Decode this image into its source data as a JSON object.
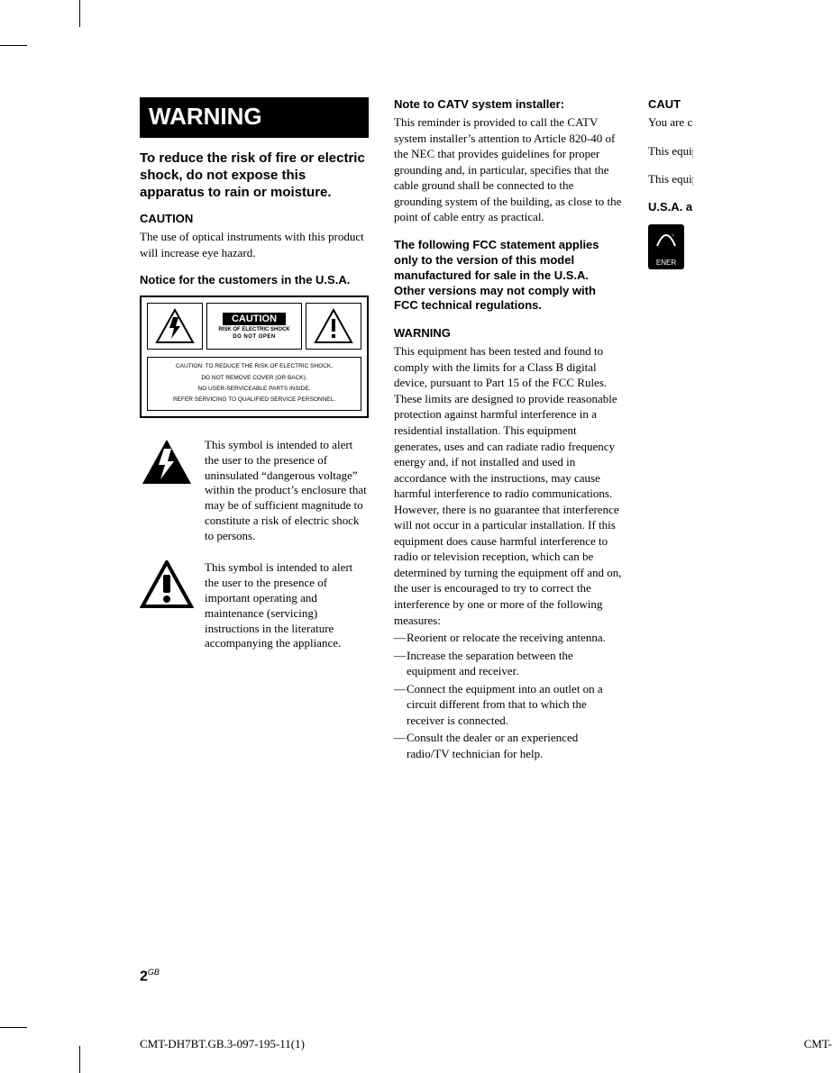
{
  "crop_marks": true,
  "col1": {
    "warning_title": "WARNING",
    "intro_bold": "To reduce the risk of fire or electric shock, do not expose this apparatus to rain or moisture.",
    "caution_head": "CAUTION",
    "caution_body": "The use of optical instruments with this product will increase eye hazard.",
    "notice_head": "Notice for the customers in the U.S.A.",
    "label": {
      "word": "CAUTION",
      "sub1": "RISK OF ELECTRIC SHOCK",
      "sub2": "DO NOT OPEN",
      "lines": "CAUTION: TO REDUCE THE RISK OF ELECTRIC SHOCK,<br>DO NOT REMOVE COVER (OR BACK).<br>NO USER-SERVICEABLE PARTS INSIDE.<br>REFER SERVICING TO QUALIFIED SERVICE PERSONNEL."
    },
    "symbol1": "This symbol is intended to alert the user to the presence of uninsulated “dangerous voltage” within the product’s enclosure that may be of sufficient magnitude to constitute a risk of electric shock to persons.",
    "symbol2": "This symbol is intended to alert the user to the presence of important operating and maintenance (servicing) instructions in the literature accompanying the appliance."
  },
  "col2": {
    "catv_head": "Note to CATV system installer:",
    "catv_body": "This reminder is provided to call the CATV system installer’s attention to Article 820-40 of the NEC that provides guidelines for proper grounding and, in particular, specifies that the cable ground shall be connected to the grounding system of the building, as close to the point of cable entry as practical.",
    "fcc_head": "The following FCC statement applies only to the version of this model manufactured for sale in the U.S.A. Other versions may not comply with FCC technical regulations.",
    "warn_head": "WARNING",
    "warn_body": "This equipment has been tested and found to comply with the limits for a Class B digital device, pursuant to Part 15 of the FCC Rules. These limits are designed to provide reasonable protection against harmful interference in a residential installation. This equipment generates, uses and can radiate radio frequency energy and, if not installed and used in accordance with the instructions, may cause harmful interference to radio communications. However, there is no guarantee that interference will not occur in a particular installation. If this equipment does cause harmful interference to radio or television reception, which can be determined by turning the equipment off and on, the user is encouraged to try to correct the interference by one or more of the following measures:",
    "dashes": [
      "Reorient or relocate the receiving antenna.",
      "Increase the separation between the equipment and receiver.",
      "Connect the equipment into an outlet on a circuit different from that to which the receiver is connected.",
      "Consult the dealer or an experienced radio/TV technician for help."
    ]
  },
  "col3": {
    "caution_head": "CAUT",
    "p1": "You are cautioned that any changes or modifications not expressly approved in this manual could void your authority to operate this equipment.",
    "p2": "This equipment must not be co-located or operated in conjunction with any other antenna or transmitter.",
    "p3": "This equipment complies with FCC radiation exposure limits set forth for uncontrolled equipment and meets the FCC radio frequency (RF) Exposure Guidelines in Supplement C to OET65. This equipment has very low levels of RF energy that it is deemed to comply without testing of specific absorption ratio (SAR). It should be installed and operated with at least 20cm and more between the radiator and person's body (excluding extremities: hands, wrists, feet and ankles).",
    "usa_head": "U.S.A. and Canadian models only",
    "ener": "ENER"
  },
  "page_number": "2",
  "page_suffix": "GB",
  "footer_left": "CMT-DH7BT.GB.3-097-195-11(1)",
  "footer_right": "CMT-"
}
